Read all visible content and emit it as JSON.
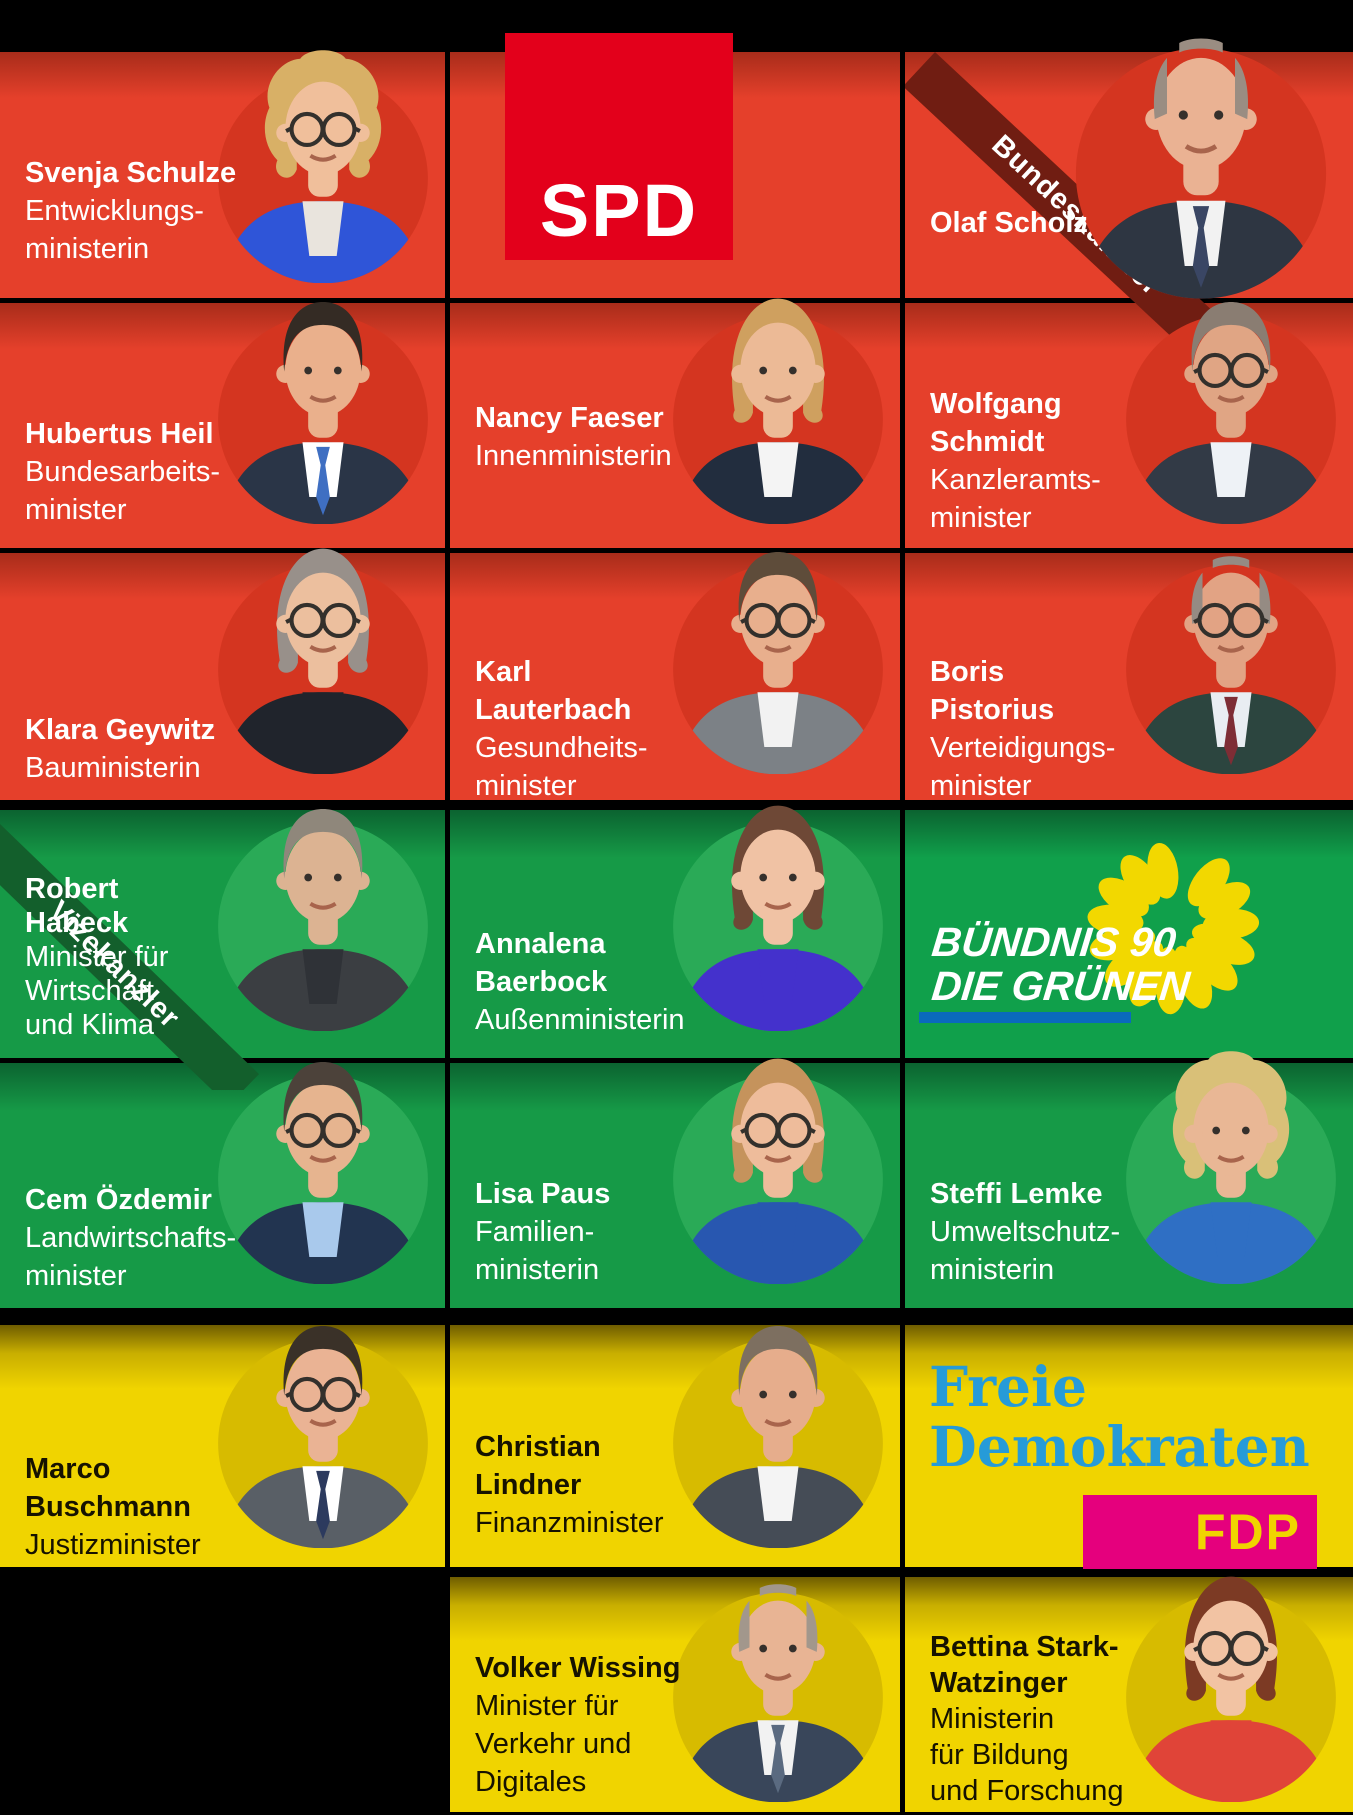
{
  "ribbons": {
    "bundeskanzler": "Bundeskanzler",
    "vizekanzler": "Vizekanzler"
  },
  "party_logos": {
    "spd": {
      "text": "SPD"
    },
    "gruene": {
      "line1": "BÜNDNIS 90",
      "line2": "DIE GRÜNEN"
    },
    "fdp": {
      "line1": "Freie",
      "line2": "Demokraten",
      "badge": "FDP"
    }
  },
  "colors": {
    "spd": {
      "bg": "#e5402b",
      "top": "#a82c1a",
      "circle": "#d43520",
      "logo_bg": "#e3001b",
      "ribbon": "#701d12"
    },
    "gruene": {
      "bg": "#169a47",
      "top": "#0b6330",
      "circle": "#2aaa57",
      "logo_bg": "#10a04b",
      "ribbon": "#135f2c",
      "bar": "#0a6abd",
      "sunflower": "#f2d800"
    },
    "fdp": {
      "bg": "#f0d400",
      "circle": "#d7bb00",
      "text": "#161200",
      "blue": "#269bd8",
      "magenta": "#e5007d"
    },
    "page_bg": "#000000"
  },
  "cells": [
    {
      "id": "schulze",
      "type": "member",
      "party": "spd",
      "name_lines": [
        "Svenja Schulze"
      ],
      "role_lines": [
        "Entwicklungs-",
        "ministerin"
      ],
      "avatar": {
        "hair_style": "curly",
        "hair": "#d8b066",
        "skin": "#f0bf9b",
        "jacket": "#2f55d8",
        "shirt": "#e9e4dd",
        "glasses": true
      }
    },
    {
      "id": "spd-logo",
      "type": "logo-spd",
      "party": "spd"
    },
    {
      "id": "scholz",
      "type": "member",
      "party": "spd",
      "ribbon": "bundeskanzler",
      "name_lines": [
        "Olaf Scholz"
      ],
      "role_lines": [],
      "avatar": {
        "hair_style": "balding",
        "hair": "#9a8d82",
        "skin": "#eab293",
        "jacket": "#2e3642",
        "shirt": "#f2f2f2",
        "tie": "#3a4664",
        "glasses": false
      }
    },
    {
      "id": "heil",
      "type": "member",
      "party": "spd",
      "name_lines": [
        "Hubertus Heil"
      ],
      "role_lines": [
        "Bundesarbeits-",
        "minister"
      ],
      "avatar": {
        "hair_style": "short",
        "hair": "#342b24",
        "skin": "#eab08c",
        "jacket": "#2a3547",
        "shirt": "#ffffff",
        "tie": "#3f6fc2",
        "glasses": false
      }
    },
    {
      "id": "faeser",
      "type": "member",
      "party": "spd",
      "name_lines": [
        "Nancy Faeser"
      ],
      "role_lines": [
        "Innenministerin"
      ],
      "avatar": {
        "hair_style": "bob",
        "hair": "#cfa05f",
        "skin": "#ecba96",
        "jacket": "#222d3e",
        "shirt": "#f4f4f4",
        "glasses": false
      }
    },
    {
      "id": "schmidt",
      "type": "member",
      "party": "spd",
      "name_lines": [
        "Wolfgang",
        "Schmidt"
      ],
      "role_lines": [
        "Kanzleramts-",
        "minister"
      ],
      "avatar": {
        "hair_style": "short",
        "hair": "#8a7d72",
        "skin": "#e0a584",
        "jacket": "#323a46",
        "shirt": "#eef2f6",
        "glasses": true
      }
    },
    {
      "id": "geywitz",
      "type": "member",
      "party": "spd",
      "name_lines": [
        "Klara Geywitz"
      ],
      "role_lines": [
        "Bauministerin"
      ],
      "avatar": {
        "hair_style": "bob",
        "hair": "#98908a",
        "skin": "#ecbf9e",
        "jacket": "#20242c",
        "shirt": "#20242c",
        "glasses": true
      }
    },
    {
      "id": "lauterbach",
      "type": "member",
      "party": "spd",
      "name_lines": [
        "Karl",
        "Lauterbach"
      ],
      "role_lines": [
        "Gesundheits-",
        "minister"
      ],
      "avatar": {
        "hair_style": "short",
        "hair": "#5e4c3a",
        "skin": "#e8af8d",
        "jacket": "#7c8186",
        "shirt": "#f2f2f2",
        "glasses": true
      }
    },
    {
      "id": "pistorius",
      "type": "member",
      "party": "spd",
      "name_lines": [
        "Boris",
        "Pistorius"
      ],
      "role_lines": [
        "Verteidigungs-",
        "minister"
      ],
      "avatar": {
        "hair_style": "balding",
        "hair": "#958b83",
        "skin": "#e2a384",
        "jacket": "#2c453f",
        "shirt": "#e9edf2",
        "tie": "#7e2d35",
        "glasses": true
      }
    },
    {
      "id": "habeck",
      "type": "member",
      "party": "gruene",
      "ribbon": "vizekanzler",
      "name_lines": [
        "Robert",
        "Habeck"
      ],
      "role_lines": [
        "Minister für",
        "Wirtschaft",
        "und Klima"
      ],
      "avatar": {
        "hair_style": "short",
        "hair": "#8f877b",
        "skin": "#dcb392",
        "jacket": "#3b3e42",
        "shirt": "#2f3237",
        "glasses": false
      }
    },
    {
      "id": "baerbock",
      "type": "member",
      "party": "gruene",
      "name_lines": [
        "Annalena",
        "Baerbock"
      ],
      "role_lines": [
        "Außenministerin"
      ],
      "avatar": {
        "hair_style": "bob",
        "hair": "#6e4836",
        "skin": "#f0c2a4",
        "jacket": "#4431cc",
        "shirt": "#4431cc",
        "glasses": false
      }
    },
    {
      "id": "gruene-logo",
      "type": "logo-gruene",
      "party": "gruene"
    },
    {
      "id": "oezdemir",
      "type": "member",
      "party": "gruene",
      "name_lines": [
        "Cem Özdemir"
      ],
      "role_lines": [
        "Landwirtschafts-",
        "minister"
      ],
      "avatar": {
        "hair_style": "short",
        "hair": "#4c423a",
        "skin": "#e6b48f",
        "jacket": "#223450",
        "shirt": "#a9c9ec",
        "glasses": true
      }
    },
    {
      "id": "paus",
      "type": "member",
      "party": "gruene",
      "name_lines": [
        "Lisa Paus"
      ],
      "role_lines": [
        "Familien-",
        "ministerin"
      ],
      "avatar": {
        "hair_style": "bob",
        "hair": "#c5935c",
        "skin": "#eebc9b",
        "jacket": "#2857b0",
        "shirt": "#2857b0",
        "glasses": true
      }
    },
    {
      "id": "lemke",
      "type": "member",
      "party": "gruene",
      "name_lines": [
        "Steffi Lemke"
      ],
      "role_lines": [
        "Umweltschutz-",
        "ministerin"
      ],
      "avatar": {
        "hair_style": "curly",
        "hair": "#d9c078",
        "skin": "#e9b795",
        "jacket": "#2f6fc4",
        "shirt": "#2f6fc4",
        "glasses": false
      }
    },
    {
      "id": "buschmann",
      "type": "member",
      "party": "fdp",
      "name_lines": [
        "Marco",
        "Buschmann"
      ],
      "role_lines": [
        "Justizminister"
      ],
      "avatar": {
        "hair_style": "short",
        "hair": "#3a3128",
        "skin": "#eab394",
        "jacket": "#595f66",
        "shirt": "#ffffff",
        "tie": "#2c3a5e",
        "glasses": true
      }
    },
    {
      "id": "lindner",
      "type": "member",
      "party": "fdp",
      "name_lines": [
        "Christian",
        "Lindner"
      ],
      "role_lines": [
        "Finanzminister"
      ],
      "avatar": {
        "hair_style": "short",
        "hair": "#7d6f60",
        "skin": "#e6ad8c",
        "jacket": "#454c56",
        "shirt": "#f4f4f4",
        "glasses": false
      }
    },
    {
      "id": "fdp-logo",
      "type": "logo-fdp",
      "party": "fdp"
    },
    {
      "id": "wissing",
      "type": "member",
      "party": "fdp",
      "name_lines": [
        "Volker Wissing"
      ],
      "role_lines": [
        "Minister für",
        "Verkehr und",
        "Digitales"
      ],
      "avatar": {
        "hair_style": "balding",
        "hair": "#a2978c",
        "skin": "#e8b494",
        "jacket": "#39465a",
        "shirt": "#f2f2f2",
        "tie": "#5a6a80",
        "glasses": false
      }
    },
    {
      "id": "stark-watzinger",
      "type": "member",
      "party": "fdp",
      "name_lines": [
        "Bettina Stark-",
        "Watzinger"
      ],
      "role_lines": [
        "Ministerin",
        "für Bildung",
        "und Forschung"
      ],
      "avatar": {
        "hair_style": "bob",
        "hair": "#7c3a24",
        "skin": "#f2c3a3",
        "jacket": "#e04438",
        "shirt": "#e04438",
        "glasses": true
      }
    }
  ]
}
